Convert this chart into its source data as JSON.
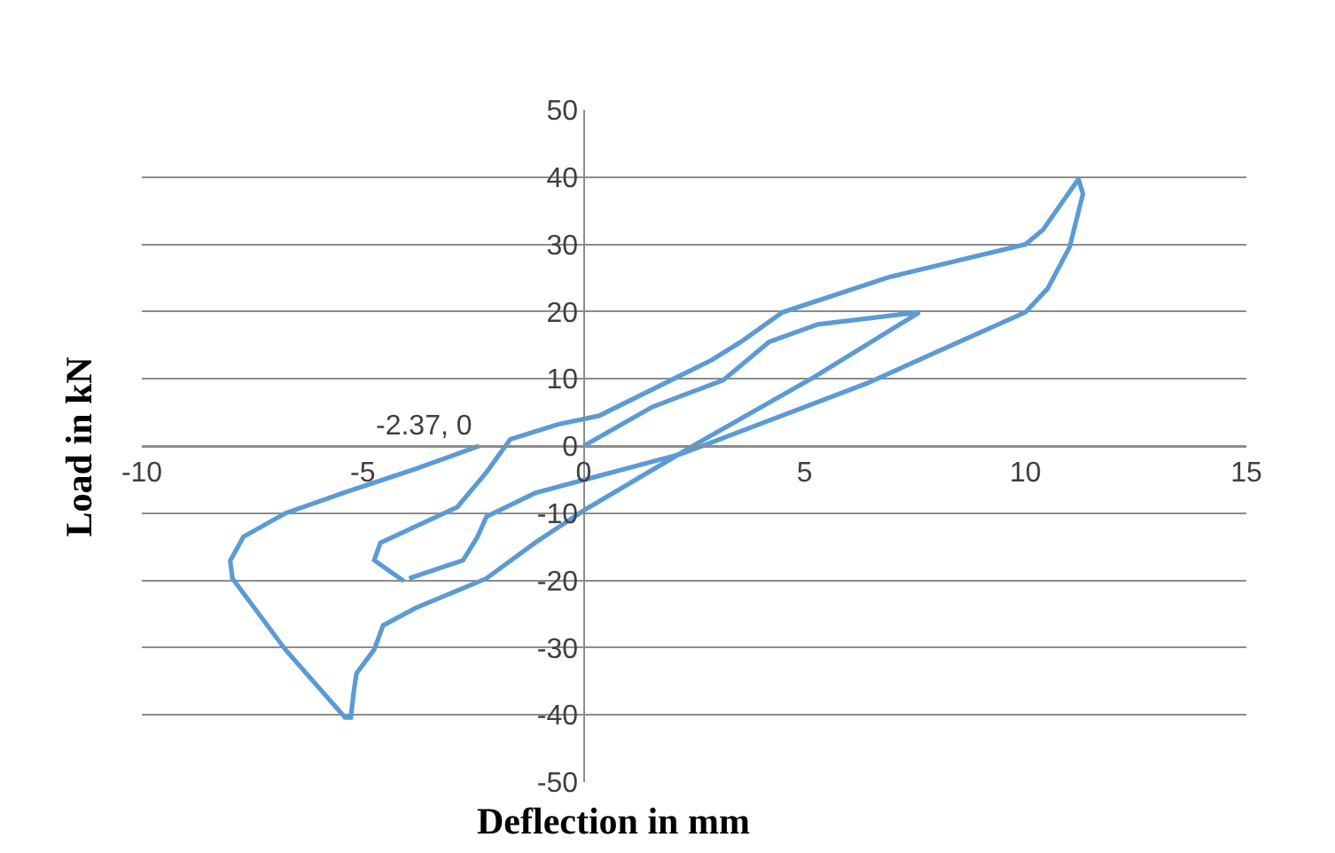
{
  "chart_data": {
    "type": "line",
    "xlabel": "Deflection in mm",
    "ylabel": "Load in kN",
    "series": [
      {
        "color": "#5b9bd5",
        "x": [
          0,
          1.55,
          3.16,
          4.2,
          5.3,
          7.6,
          5.2,
          2.6,
          0,
          -1.1,
          -2.2,
          -3.8,
          -4.54,
          -4.74,
          -5.14,
          -5.2,
          -5.27,
          -5.4,
          -6.75,
          -7.95,
          -8.0,
          -7.7,
          -6.75,
          -5.4,
          -3.8,
          -2.37
        ],
        "values": [
          0,
          5.8,
          9.8,
          15.5,
          18.1,
          19.9,
          10.2,
          0.5,
          -9.6,
          -14.4,
          -19.7,
          -24.1,
          -26.7,
          -30.3,
          -33.8,
          -36.4,
          -40.4,
          -40.4,
          -30.3,
          -19.7,
          -17.1,
          -13.5,
          -10,
          -6.9,
          -3.4,
          0
        ]
      },
      {
        "color": "#5b9bd5",
        "x": [
          -4.07,
          -4.74,
          -4.6,
          -2.86,
          -2.2,
          -1.66,
          -0.59,
          0.35,
          2.9,
          3.56,
          4.5,
          6.9,
          10.0,
          10.4,
          11.2,
          11.3,
          11.0,
          10.5,
          10.0,
          6.4,
          2.2,
          0.2,
          -1.1,
          -2.2,
          -2.4,
          -2.73,
          -3.95
        ],
        "values": [
          -20.1,
          -17,
          -14.4,
          -9.1,
          -3.9,
          1.0,
          3.2,
          4.5,
          12.8,
          15.5,
          19.9,
          25.1,
          30.0,
          32.2,
          39.7,
          37.5,
          29.6,
          23.4,
          19.9,
          9.3,
          -1.2,
          -4.7,
          -7,
          -10.5,
          -13.5,
          -17,
          -19.7
        ]
      }
    ],
    "annotations": [
      {
        "text": "-2.37, 0",
        "x": -2.37,
        "y": 0
      }
    ],
    "xlim": [
      -10,
      15
    ],
    "xticks": [
      -10,
      -5,
      0,
      5,
      10,
      15
    ],
    "ylim": [
      -50,
      50
    ],
    "yticks": [
      -50,
      -40,
      -30,
      -20,
      -10,
      0,
      10,
      20,
      30,
      40,
      50
    ],
    "grid": "y",
    "marker": "none",
    "line_style": "solid"
  }
}
